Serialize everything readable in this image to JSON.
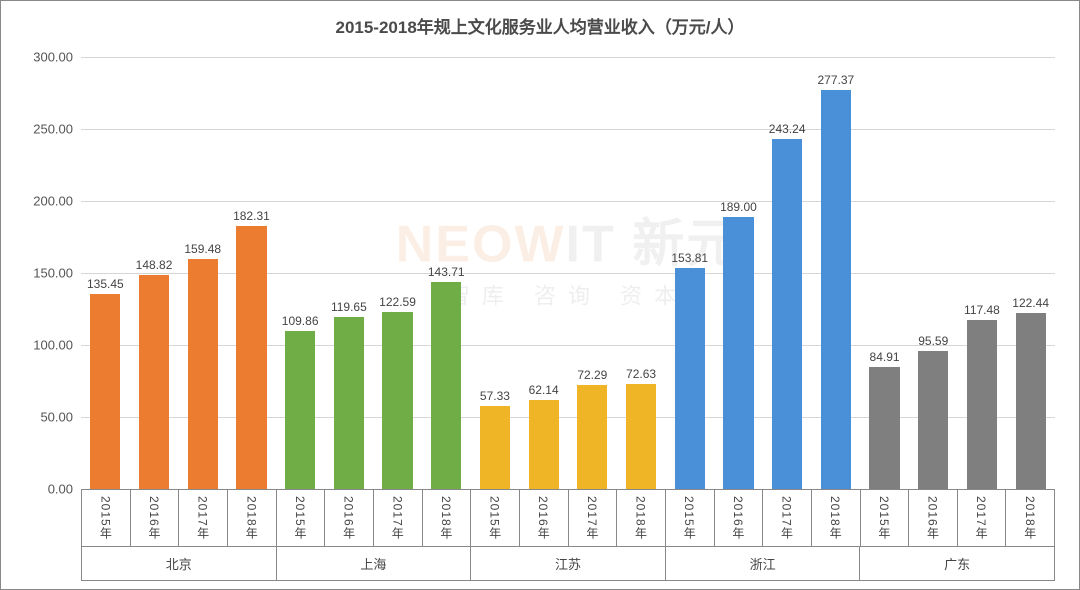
{
  "chart": {
    "type": "bar",
    "title": "2015-2018年规上文化服务业人均营业收入（万元/人）",
    "title_fontsize": 17,
    "title_color": "#4a4a4a",
    "background_color": "#ffffff",
    "grid_color": "#d6d6d6",
    "axis_color": "#888888",
    "y_axis": {
      "min": 0,
      "max": 300,
      "step": 50,
      "ticks": [
        "0.00",
        "50.00",
        "100.00",
        "150.00",
        "200.00",
        "250.00",
        "300.00"
      ],
      "label_fontsize": 13,
      "label_color": "#555555"
    },
    "x_years": [
      "2015年",
      "2016年",
      "2017年",
      "2018年"
    ],
    "groups": [
      {
        "region": "北京",
        "color": "#ec7c30",
        "values": [
          135.45,
          148.82,
          159.48,
          182.31
        ],
        "labels": [
          "135.45",
          "148.82",
          "159.48",
          "182.31"
        ]
      },
      {
        "region": "上海",
        "color": "#70ad46",
        "values": [
          109.86,
          119.65,
          122.59,
          143.71
        ],
        "labels": [
          "109.86",
          "119.65",
          "122.59",
          "143.71"
        ]
      },
      {
        "region": "江苏",
        "color": "#f0b427",
        "values": [
          57.33,
          62.14,
          72.29,
          72.63
        ],
        "labels": [
          "57.33",
          "62.14",
          "72.29",
          "72.63"
        ]
      },
      {
        "region": "浙江",
        "color": "#4a90d9",
        "values": [
          153.81,
          189.0,
          243.24,
          277.37
        ],
        "labels": [
          "153.81",
          "189.00",
          "243.24",
          "277.37"
        ]
      },
      {
        "region": "广东",
        "color": "#7f7f7f",
        "values": [
          84.91,
          95.59,
          117.48,
          122.44
        ],
        "labels": [
          "84.91",
          "95.59",
          "117.48",
          "122.44"
        ]
      }
    ],
    "bar_width_ratio": 0.62,
    "data_label_fontsize": 12,
    "data_label_color": "#444444",
    "x_label_fontsize": 13,
    "x_label_color": "#444444"
  },
  "watermark": {
    "line1_a": "NEOW",
    "line1_b": "IT",
    "line1_c": "新元",
    "line2": "智库 咨询 资本"
  }
}
